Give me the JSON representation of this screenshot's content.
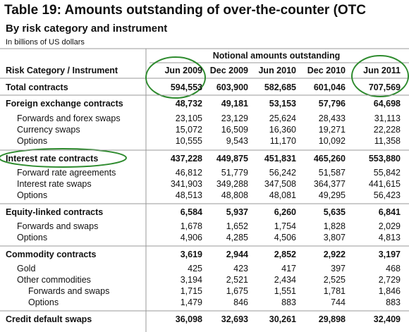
{
  "header": {
    "title": "Table 19: Amounts outstanding of over-the-counter (OTC",
    "subtitle": "By risk category and instrument",
    "unit": "In billions of US dollars"
  },
  "table": {
    "group_header": "Notional amounts outstanding",
    "columns": [
      "Risk Category / Instrument",
      "Jun 2009",
      "Dec 2009",
      "Jun 2010",
      "Dec 2010",
      "Jun 2011"
    ],
    "rows": [
      [
        "Total contracts",
        "594,553",
        "603,900",
        "582,685",
        "601,046",
        "707,569"
      ],
      [
        "Foreign exchange contracts",
        "48,732",
        "49,181",
        "53,153",
        "57,796",
        "64,698"
      ],
      [
        "Forwards and forex swaps",
        "23,105",
        "23,129",
        "25,624",
        "28,433",
        "31,113"
      ],
      [
        "Currency swaps",
        "15,072",
        "16,509",
        "16,360",
        "19,271",
        "22,228"
      ],
      [
        "Options",
        "10,555",
        "9,543",
        "11,170",
        "10,092",
        "11,358"
      ],
      [
        "Interest rate contracts",
        "437,228",
        "449,875",
        "451,831",
        "465,260",
        "553,880"
      ],
      [
        "Forward rate agreements",
        "46,812",
        "51,779",
        "56,242",
        "51,587",
        "55,842"
      ],
      [
        "Interest rate swaps",
        "341,903",
        "349,288",
        "347,508",
        "364,377",
        "441,615"
      ],
      [
        "Options",
        "48,513",
        "48,808",
        "48,081",
        "49,295",
        "56,423"
      ],
      [
        "Equity-linked contracts",
        "6,584",
        "5,937",
        "6,260",
        "5,635",
        "6,841"
      ],
      [
        "Forwards and swaps",
        "1,678",
        "1,652",
        "1,754",
        "1,828",
        "2,029"
      ],
      [
        "Options",
        "4,906",
        "4,285",
        "4,506",
        "3,807",
        "4,813"
      ],
      [
        "Commodity contracts",
        "3,619",
        "2,944",
        "2,852",
        "2,922",
        "3,197"
      ],
      [
        "Gold",
        "425",
        "423",
        "417",
        "397",
        "468"
      ],
      [
        "Other commodities",
        "3,194",
        "2,521",
        "2,434",
        "2,525",
        "2,729"
      ],
      [
        "Forwards and swaps",
        "1,715",
        "1,675",
        "1,551",
        "1,781",
        "1,846"
      ],
      [
        "Options",
        "1,479",
        "846",
        "883",
        "744",
        "883"
      ],
      [
        "Credit default swaps",
        "36,098",
        "32,693",
        "30,261",
        "29,898",
        "32,409"
      ]
    ]
  }
}
